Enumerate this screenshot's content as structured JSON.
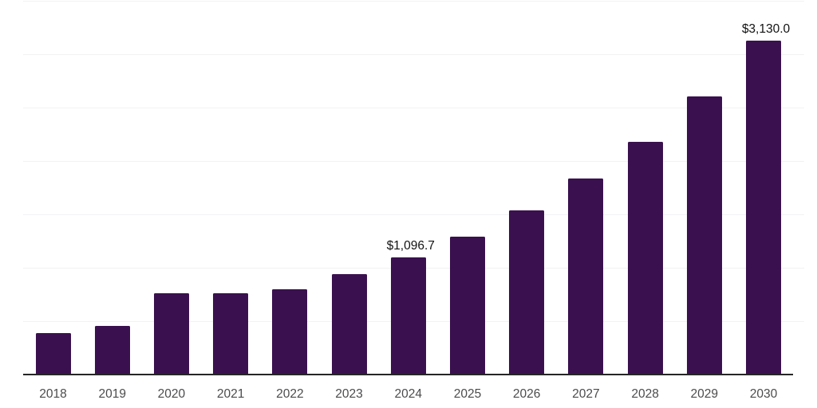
{
  "chart_data": {
    "type": "bar",
    "title": "",
    "xlabel": "",
    "ylabel": "",
    "categories": [
      "2018",
      "2019",
      "2020",
      "2021",
      "2022",
      "2023",
      "2024",
      "2025",
      "2026",
      "2027",
      "2028",
      "2029",
      "2030"
    ],
    "values": [
      385,
      455,
      758,
      765,
      801,
      943,
      1096.7,
      1294,
      1537,
      1834,
      2178,
      2605,
      3130
    ],
    "value_labels": {
      "2024": "$1,096.7",
      "2030": "$3,130.0"
    },
    "ylim": [
      0,
      3500
    ],
    "gridline_interval": 500,
    "grid": "horizontal",
    "legend": "none",
    "colors": {
      "bar": "#3A114E",
      "axis_line": "#262626",
      "gridline": "#F2F2F4",
      "tick_label": "#4B4B4D",
      "value_label": "#121212",
      "background": "#FFFFFF"
    }
  }
}
